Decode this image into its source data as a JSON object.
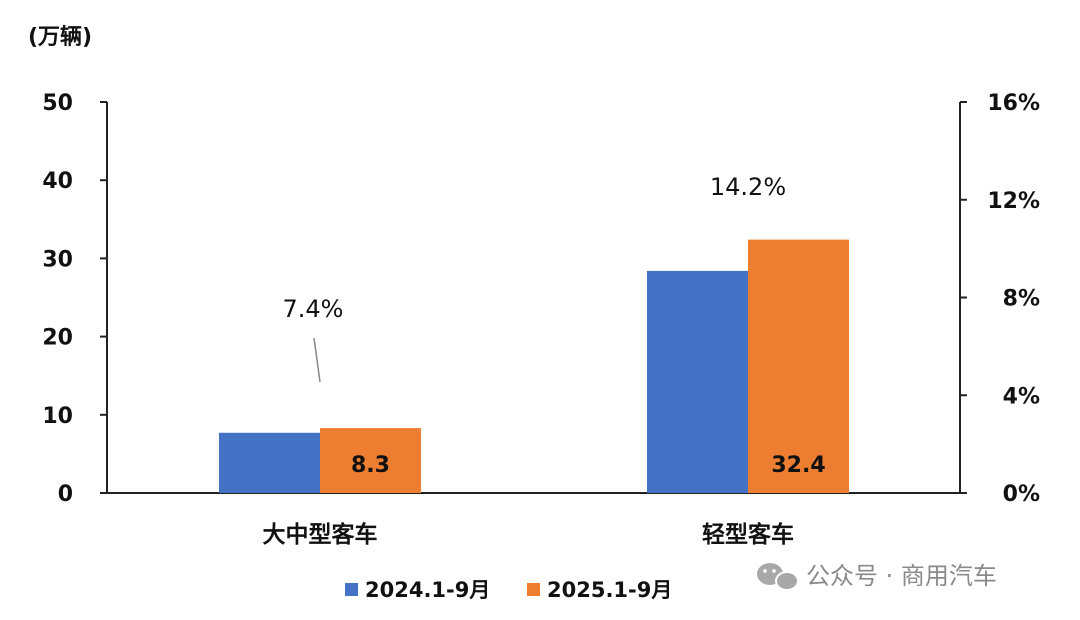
{
  "chart_data": {
    "type": "bar",
    "unit_label": "(万辆)",
    "categories": [
      "大中型客车",
      "轻型客车"
    ],
    "series": [
      {
        "name": "2024.1-9月",
        "color": "#4472C4",
        "values": [
          7.7,
          28.4
        ]
      },
      {
        "name": "2025.1-9月",
        "color": "#ED7D31",
        "values": [
          8.3,
          32.4
        ]
      }
    ],
    "data_labels": [
      "8.3",
      "32.4"
    ],
    "growth_labels": [
      "7.4%",
      "14.2%"
    ],
    "ylim": [
      0,
      50
    ],
    "yticks": [
      "0",
      "10",
      "20",
      "30",
      "40",
      "50"
    ],
    "y2lim": [
      0,
      16
    ],
    "y2ticks": [
      "0%",
      "4%",
      "8%",
      "12%",
      "16%"
    ],
    "legend_position": "bottom",
    "grid": false
  },
  "watermark": {
    "icon": "wechat-icon",
    "text": "公众号 · 商用汽车"
  }
}
